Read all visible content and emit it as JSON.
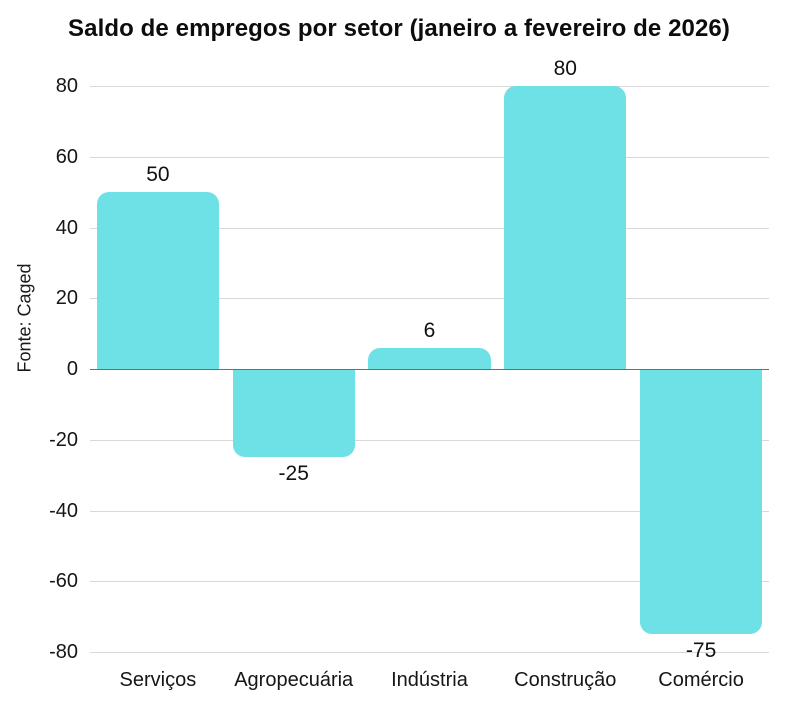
{
  "chart_data": {
    "type": "bar",
    "title": "Saldo de empregos por setor (janeiro a fevereiro de 2026)",
    "ylabel": "Fonte: Caged",
    "xlabel": "",
    "categories": [
      "Serviços",
      "Agropecuária",
      "Indústria",
      "Construção",
      "Comércio"
    ],
    "values": [
      50,
      -25,
      6,
      80,
      -75
    ],
    "data_labels": [
      "50",
      "-25",
      "6",
      "80",
      "-75"
    ],
    "ylim": [
      -80,
      80
    ],
    "yticks": [
      80,
      60,
      40,
      20,
      0,
      -20,
      -40,
      -60,
      -80
    ],
    "grid": "horizontal",
    "legend": "none",
    "bar_corner_radius_px": 12,
    "colors": {
      "bar": "#6DE1E6",
      "gridline": "#D9D9D9",
      "zero_line": "#6E6E6E",
      "text": "#111111",
      "background": "#FFFFFF"
    }
  }
}
